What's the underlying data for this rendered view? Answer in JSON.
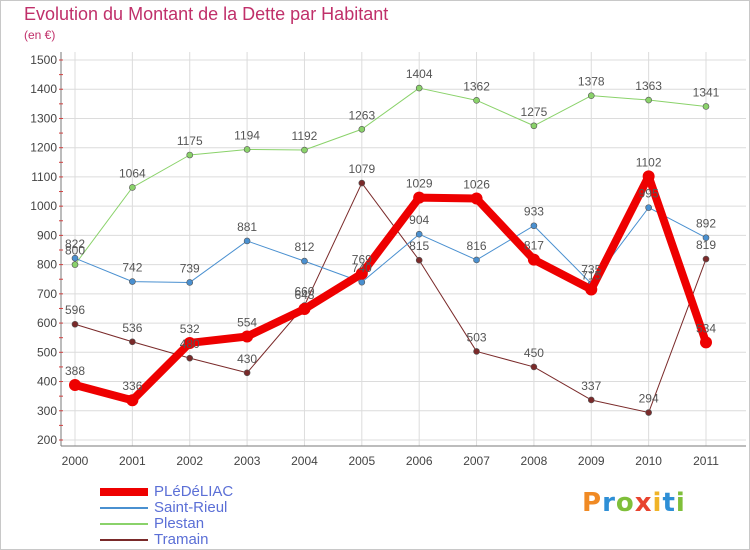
{
  "title": "Evolution du Montant de la Dette par Habitant",
  "unit": "(en €)",
  "logo": {
    "text": "Proxiti",
    "letters": [
      {
        "ch": "P",
        "color": "#f08a24"
      },
      {
        "ch": "r",
        "color": "#2e8fd6"
      },
      {
        "ch": "o",
        "color": "#7fbf3a"
      },
      {
        "ch": "x",
        "color": "#e8432e"
      },
      {
        "ch": "i",
        "color": "#f0b428"
      },
      {
        "ch": "t",
        "color": "#2e8fd6"
      },
      {
        "ch": "i",
        "color": "#7fbf3a"
      }
    ]
  },
  "chart_data": {
    "type": "line",
    "title": "Evolution du Montant de la Dette par Habitant",
    "subtitle": "(en €)",
    "xlabel": "",
    "ylabel": "",
    "categories": [
      "2000",
      "2001",
      "2002",
      "2003",
      "2004",
      "2005",
      "2006",
      "2007",
      "2008",
      "2009",
      "2010",
      "2011"
    ],
    "ylim": [
      200,
      1500
    ],
    "yticks": [
      200,
      300,
      400,
      500,
      600,
      700,
      800,
      900,
      1000,
      1100,
      1200,
      1300,
      1400,
      1500
    ],
    "grid": true,
    "legend_position": "bottom-left",
    "series": [
      {
        "name": "Tramain",
        "color": "#7a2a2a",
        "width": 1,
        "marker": 3,
        "values": [
          596,
          536,
          480,
          430,
          660,
          1079,
          815,
          503,
          450,
          337,
          294,
          819
        ],
        "labels": [
          "596",
          "536",
          "480",
          "430",
          "660",
          "1079",
          "815",
          "503",
          "450",
          "337",
          "294",
          "819"
        ]
      },
      {
        "name": "Plestan",
        "color": "#8ad26a",
        "width": 1,
        "marker": 3,
        "values": [
          800,
          1064,
          1175,
          1194,
          1192,
          1263,
          1404,
          1362,
          1275,
          1378,
          1363,
          1341
        ],
        "labels": [
          "800",
          "1064",
          "1175",
          "1194",
          "1192",
          "1263",
          "1404",
          "1362",
          "1275",
          "1378",
          "1363",
          "1341"
        ]
      },
      {
        "name": "Saint-Rieul",
        "color": "#4a90d0",
        "width": 1,
        "marker": 3,
        "values": [
          822,
          742,
          739,
          881,
          812,
          740,
          904,
          816,
          933,
          735,
          995,
          892
        ],
        "labels": [
          "822",
          "742",
          "739",
          "881",
          "812",
          "740",
          "904",
          "816",
          "933",
          "735",
          "995",
          "892"
        ]
      },
      {
        "name": "PLéDéLIAC",
        "color": "#ee0000",
        "width": 8,
        "marker": 6,
        "values": [
          388,
          336,
          532,
          554,
          648,
          769,
          1029,
          1026,
          817,
          715,
          1102,
          534
        ],
        "labels": [
          "388",
          "336",
          "532",
          "554",
          "648",
          "769",
          "1029",
          "1026",
          "817",
          "715",
          "1102",
          "534"
        ]
      }
    ]
  },
  "legend": [
    {
      "label": "PLéDéLIAC",
      "color": "#ee0000",
      "thickness": 8
    },
    {
      "label": "Saint-Rieul",
      "color": "#4a90d0",
      "thickness": 2
    },
    {
      "label": "Plestan",
      "color": "#8ad26a",
      "thickness": 2
    },
    {
      "label": "Tramain",
      "color": "#7a2a2a",
      "thickness": 2
    }
  ]
}
